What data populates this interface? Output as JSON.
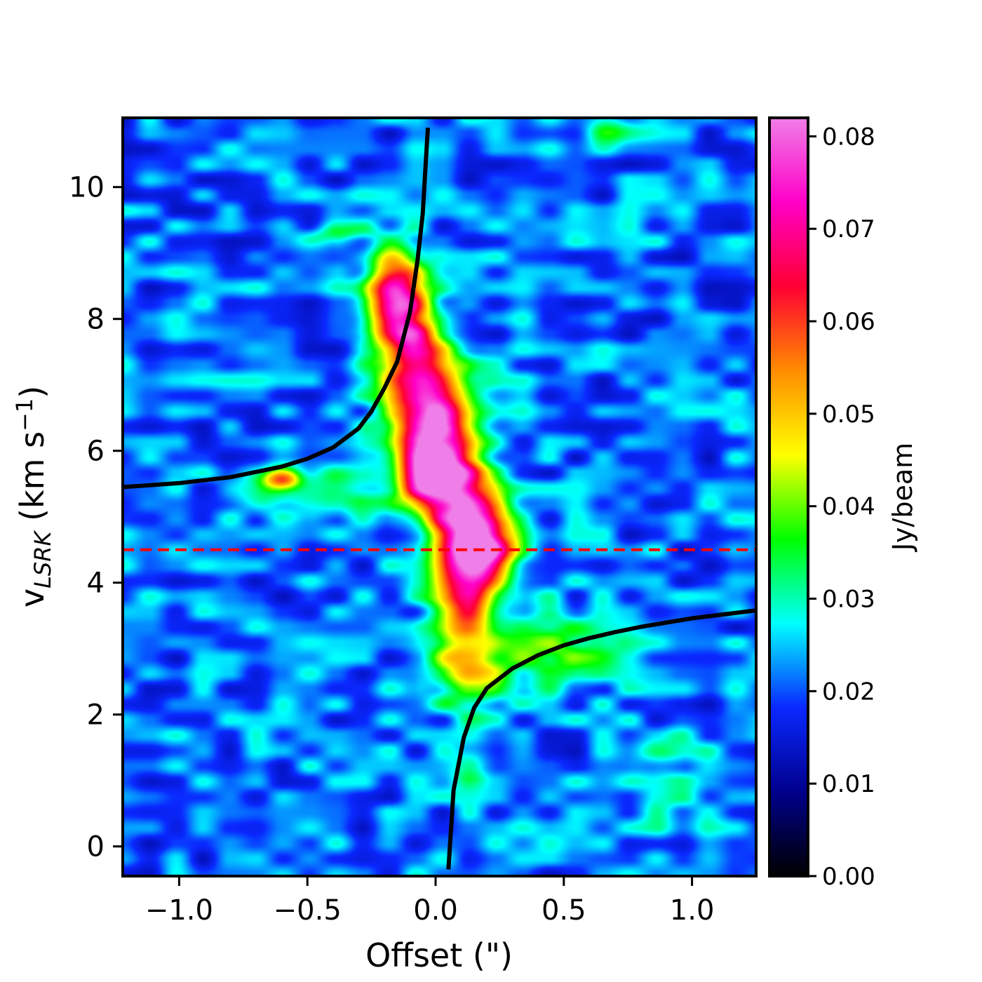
{
  "chart_data": {
    "type": "heatmap",
    "title": "",
    "xlabel": "Offset (\")",
    "ylabel_main": "v",
    "ylabel_sub": "LSRK",
    "ylabel_unit_pre": " (km s",
    "ylabel_unit_sup": "−1",
    "ylabel_unit_post": ")",
    "xlim": [
      -1.22,
      1.25
    ],
    "ylim": [
      -0.45,
      11.05
    ],
    "x_ticks": [
      {
        "value": -1.0,
        "label": "−1.0"
      },
      {
        "value": -0.5,
        "label": "−0.5"
      },
      {
        "value": 0.0,
        "label": "0.0"
      },
      {
        "value": 0.5,
        "label": "0.5"
      },
      {
        "value": 1.0,
        "label": "1.0"
      }
    ],
    "y_ticks": [
      {
        "value": 0,
        "label": "0"
      },
      {
        "value": 2,
        "label": "2"
      },
      {
        "value": 4,
        "label": "4"
      },
      {
        "value": 6,
        "label": "6"
      },
      {
        "value": 8,
        "label": "8"
      },
      {
        "value": 10,
        "label": "10"
      }
    ],
    "colorbar": {
      "label": "Jy/beam",
      "range": [
        0.0,
        0.082
      ],
      "ticks": [
        {
          "value": 0.0,
          "label": "0.00"
        },
        {
          "value": 0.01,
          "label": "0.01"
        },
        {
          "value": 0.02,
          "label": "0.02"
        },
        {
          "value": 0.03,
          "label": "0.03"
        },
        {
          "value": 0.04,
          "label": "0.04"
        },
        {
          "value": 0.05,
          "label": "0.05"
        },
        {
          "value": 0.06,
          "label": "0.06"
        },
        {
          "value": 0.07,
          "label": "0.07"
        },
        {
          "value": 0.08,
          "label": "0.08"
        }
      ],
      "colormap": [
        "#000000",
        "#00008c",
        "#0a28ff",
        "#00ffff",
        "#00ff00",
        "#ffff00",
        "#ff8c00",
        "#ff0033",
        "#ff00c8",
        "#f07ee8"
      ]
    },
    "background_level": 0.021,
    "emission_components": [
      {
        "x": -0.16,
        "y": 8.3,
        "amp": 0.056,
        "sx": 0.08,
        "sy": 0.5
      },
      {
        "x": -0.07,
        "y": 7.5,
        "amp": 0.03,
        "sx": 0.09,
        "sy": 0.5
      },
      {
        "x": -0.04,
        "y": 6.6,
        "amp": 0.038,
        "sx": 0.11,
        "sy": 0.6
      },
      {
        "x": 0.02,
        "y": 5.9,
        "amp": 0.04,
        "sx": 0.11,
        "sy": 0.6
      },
      {
        "x": 0.0,
        "y": 5.5,
        "amp": 0.03,
        "sx": 0.09,
        "sy": 0.35
      },
      {
        "x": 0.13,
        "y": 5.0,
        "amp": 0.03,
        "sx": 0.09,
        "sy": 0.5
      },
      {
        "x": 0.18,
        "y": 4.6,
        "amp": 0.045,
        "sx": 0.1,
        "sy": 0.35
      },
      {
        "x": 0.14,
        "y": 4.1,
        "amp": 0.03,
        "sx": 0.09,
        "sy": 0.4
      },
      {
        "x": 0.1,
        "y": 3.4,
        "amp": 0.024,
        "sx": 0.09,
        "sy": 0.5
      },
      {
        "x": 0.13,
        "y": 2.6,
        "amp": 0.02,
        "sx": 0.1,
        "sy": 0.4
      },
      {
        "x": 0.45,
        "y": 3.0,
        "amp": 0.018,
        "sx": 0.18,
        "sy": 0.4
      },
      {
        "x": -0.42,
        "y": 5.4,
        "amp": 0.015,
        "sx": 0.17,
        "sy": 0.3
      },
      {
        "x": -0.6,
        "y": 5.55,
        "amp": 0.025,
        "sx": 0.05,
        "sy": 0.1
      },
      {
        "x": -0.68,
        "y": 5.4,
        "amp": 0.012,
        "sx": 0.08,
        "sy": 0.25
      },
      {
        "x": 0.13,
        "y": 1.2,
        "amp": 0.01,
        "sx": 0.05,
        "sy": 0.2
      },
      {
        "x": -0.38,
        "y": 9.3,
        "amp": 0.01,
        "sx": 0.1,
        "sy": 0.1
      },
      {
        "x": 0.9,
        "y": 1.4,
        "amp": 0.008,
        "sx": 0.1,
        "sy": 0.3
      },
      {
        "x": 0.95,
        "y": 0.5,
        "amp": 0.006,
        "sx": 0.12,
        "sy": 0.3
      },
      {
        "x": 0.7,
        "y": 10.85,
        "amp": 0.01,
        "sx": 0.08,
        "sy": 0.15
      }
    ],
    "reference_line": {
      "y": 4.5,
      "color": "#ff0000",
      "style": "dashed"
    },
    "keplerian_curves": {
      "color": "#000000",
      "series": [
        {
          "points": [
            [
              -1.22,
              5.45
            ],
            [
              -1.0,
              5.51
            ],
            [
              -0.8,
              5.6
            ],
            [
              -0.6,
              5.76
            ],
            [
              -0.5,
              5.88
            ],
            [
              -0.4,
              6.05
            ],
            [
              -0.3,
              6.34
            ],
            [
              -0.25,
              6.6
            ],
            [
              -0.2,
              6.95
            ],
            [
              -0.15,
              7.35
            ],
            [
              -0.1,
              8.1
            ],
            [
              -0.07,
              8.9
            ],
            [
              -0.05,
              9.6
            ],
            [
              -0.03,
              10.9
            ]
          ]
        },
        {
          "points": [
            [
              0.05,
              -0.35
            ],
            [
              0.07,
              0.85
            ],
            [
              0.11,
              1.65
            ],
            [
              0.15,
              2.1
            ],
            [
              0.2,
              2.4
            ],
            [
              0.3,
              2.7
            ],
            [
              0.4,
              2.9
            ],
            [
              0.5,
              3.05
            ],
            [
              0.6,
              3.16
            ],
            [
              0.7,
              3.25
            ],
            [
              0.8,
              3.33
            ],
            [
              1.0,
              3.46
            ],
            [
              1.25,
              3.58
            ]
          ]
        }
      ]
    }
  }
}
